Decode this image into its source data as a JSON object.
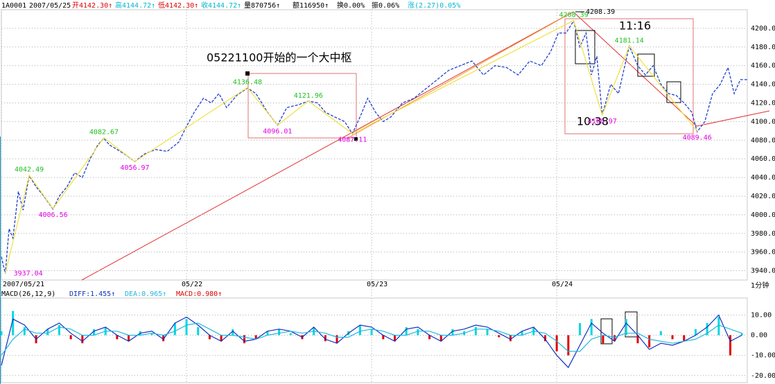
{
  "header": {
    "items": [
      "1A0001",
      "2007/05/25",
      "开4142.30↑",
      "高4144.72↑",
      "低4142.30↑",
      "收4144.72↑",
      "量870756↑",
      "额116950↑",
      "换0.00%",
      "振0.06%",
      "涨(2.27)0.05%"
    ]
  },
  "chart_data": [
    {
      "type": "line",
      "xlim": [
        0,
        967
      ],
      "ylim": [
        3930,
        4220
      ],
      "xticks": [
        {
          "value": 0,
          "label": "2007/05/21"
        },
        {
          "value": 240,
          "label": "05/22"
        },
        {
          "value": 480,
          "label": "05/23"
        },
        {
          "value": 720,
          "label": "05/24"
        }
      ],
      "yticks": [
        {
          "value": 3940,
          "label": "3940.00"
        },
        {
          "value": 3960,
          "label": "3960.00"
        },
        {
          "value": 3980,
          "label": "3980.00"
        },
        {
          "value": 4000,
          "label": "4000.00"
        },
        {
          "value": 4020,
          "label": "4020.00"
        },
        {
          "value": 4040,
          "label": "4040.00"
        },
        {
          "value": 4060,
          "label": "4060.00"
        },
        {
          "value": 4080,
          "label": "4080.00"
        },
        {
          "value": 4100,
          "label": "4100.00"
        },
        {
          "value": 4120,
          "label": "4120.00"
        },
        {
          "value": 4140,
          "label": "4140.00"
        },
        {
          "value": 4160,
          "label": "4160.00"
        },
        {
          "value": 4180,
          "label": "4180.00"
        },
        {
          "value": 4200,
          "label": "4200.00"
        }
      ],
      "grid": true,
      "series": [
        {
          "color": "#2040d0",
          "x": [
            0,
            5,
            10,
            15,
            22,
            28,
            36,
            45,
            55,
            67,
            75,
            85,
            95,
            105,
            115,
            125,
            133,
            140,
            150,
            160,
            173,
            185,
            200,
            215,
            230,
            240,
            250,
            262,
            272,
            282,
            292,
            305,
            319,
            330,
            345,
            358,
            370,
            385,
            398,
            410,
            420,
            432,
            445,
            455,
            465,
            475,
            485,
            495,
            505,
            520,
            535,
            550,
            565,
            580,
            595,
            610,
            625,
            640,
            655,
            670,
            685,
            700,
            712,
            722,
            732,
            742,
            750,
            758,
            765,
            772,
            779,
            790,
            800,
            814,
            825,
            835,
            845,
            855,
            865,
            875,
            885,
            895,
            902,
            912,
            922,
            932,
            942,
            950,
            958,
            967
          ],
          "values": [
            3955,
            3937,
            3985,
            3975,
            4025,
            4005,
            4042,
            4030,
            4020,
            4006,
            4020,
            4030,
            4045,
            4040,
            4060,
            4075,
            4082,
            4075,
            4070,
            4065,
            4057,
            4065,
            4070,
            4068,
            4078,
            4095,
            4110,
            4125,
            4120,
            4130,
            4115,
            4128,
            4136,
            4130,
            4110,
            4096,
            4115,
            4118,
            4122,
            4120,
            4110,
            4105,
            4100,
            4087,
            4105,
            4125,
            4110,
            4100,
            4105,
            4120,
            4125,
            4135,
            4145,
            4155,
            4160,
            4165,
            4150,
            4160,
            4158,
            4150,
            4165,
            4160,
            4175,
            4195,
            4195,
            4208,
            4180,
            4195,
            4150,
            4170,
            4107,
            4140,
            4130,
            4181,
            4160,
            4150,
            4160,
            4140,
            4130,
            4128,
            4120,
            4110,
            4089,
            4100,
            4130,
            4140,
            4158,
            4130,
            4145,
            4145
          ]
        },
        {
          "color": "#f0e040",
          "x": [
            5,
            36,
            67,
            133,
            173,
            319,
            358,
            398,
            455,
            742,
            779,
            814,
            902
          ],
          "values": [
            3937.04,
            4042.49,
            4006.56,
            4082.67,
            4056.97,
            4136.48,
            4096.01,
            4121.96,
            4087.11,
            4208.39,
            4106.97,
            4181.14,
            4089.46
          ]
        }
      ],
      "annotations": [
        "05221100开始的一个大中枢",
        "11:16",
        "10:38",
        "4208.39"
      ],
      "x_unit_label": "1分钟"
    },
    {
      "type": "bar",
      "title": "MACD(26,12,9)",
      "xlim": [
        0,
        967
      ],
      "ylim": [
        -23.5,
        18.4
      ],
      "yticks": [
        {
          "value": 10,
          "label": "10.00"
        },
        {
          "value": 0,
          "label": "0.00"
        },
        {
          "value": -10,
          "label": "-10.00"
        },
        {
          "value": -20,
          "label": "-20.00"
        }
      ],
      "grid": true,
      "x": [
        0,
        15,
        30,
        45,
        60,
        75,
        90,
        105,
        120,
        135,
        150,
        165,
        180,
        195,
        210,
        225,
        240,
        255,
        270,
        285,
        300,
        315,
        330,
        345,
        360,
        375,
        390,
        405,
        420,
        435,
        450,
        465,
        480,
        495,
        510,
        525,
        540,
        555,
        570,
        585,
        600,
        615,
        630,
        645,
        660,
        675,
        690,
        705,
        720,
        735,
        750,
        765,
        780,
        795,
        810,
        825,
        840,
        855,
        870,
        885,
        900,
        915,
        930,
        945,
        960
      ],
      "series": [
        {
          "label": "MACD:0.980↑",
          "color": "#00d8e0",
          "negative_color": "#e00000",
          "values": [
            2,
            12,
            4,
            -4,
            3,
            5,
            -2,
            -4,
            3,
            4,
            -2,
            -3,
            2,
            1,
            -3,
            6,
            8,
            4,
            -2,
            -3,
            3,
            -4,
            -2,
            2,
            3,
            1,
            -2,
            4,
            -3,
            -4,
            2,
            5,
            3,
            -2,
            -3,
            4,
            3,
            -2,
            -3,
            3,
            2,
            4,
            3,
            -1,
            -3,
            2,
            4,
            -3,
            -8,
            -10,
            6,
            8,
            -4,
            -3,
            8,
            -4,
            -6,
            2,
            -2,
            -3,
            3,
            6,
            9,
            -10,
            1
          ]
        },
        {
          "label": "DIFF:1.455↑",
          "color": "#1030c0",
          "values": [
            -15,
            8,
            5,
            -2,
            3,
            6,
            1,
            -3,
            2,
            4,
            0,
            -3,
            1,
            2,
            -2,
            6,
            9,
            5,
            0,
            -3,
            2,
            -3,
            -2,
            2,
            3,
            2,
            -1,
            4,
            -2,
            -4,
            1,
            5,
            4,
            0,
            -3,
            3,
            4,
            0,
            -3,
            2,
            3,
            5,
            4,
            1,
            -2,
            2,
            4,
            -2,
            -10,
            -16,
            -5,
            6,
            1,
            -3,
            6,
            0,
            -7,
            -4,
            -5,
            -3,
            0,
            4,
            10,
            -3,
            0
          ]
        },
        {
          "label": "DEA:0.965↑",
          "color": "#20b8e0",
          "values": [
            -10,
            -2,
            3,
            1,
            1,
            4,
            3,
            0,
            0,
            2,
            2,
            0,
            0,
            1,
            0,
            2,
            5,
            6,
            3,
            0,
            0,
            -1,
            -2,
            0,
            1,
            2,
            1,
            2,
            1,
            -1,
            -1,
            2,
            3,
            2,
            0,
            0,
            2,
            2,
            0,
            0,
            1,
            3,
            3,
            2,
            0,
            0,
            2,
            1,
            -3,
            -8,
            -8,
            -2,
            0,
            -1,
            1,
            1,
            -2,
            -3,
            -4,
            -3,
            -2,
            1,
            5,
            3,
            1
          ]
        }
      ]
    }
  ]
}
